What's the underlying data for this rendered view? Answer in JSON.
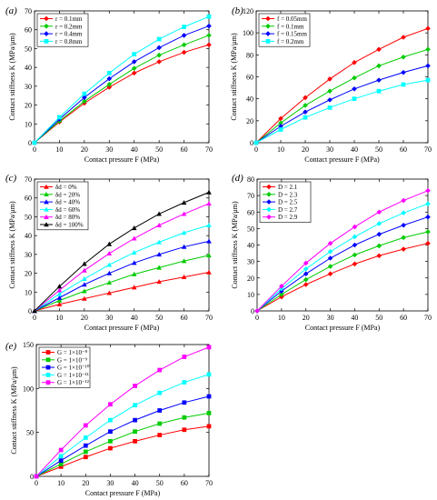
{
  "figure": {
    "chart_data": [
      {
        "panel": "(a)",
        "type": "line",
        "xlabel": "Contact pressure F (MPa)",
        "ylabel": "Contact stiffness K (MPa/μm)",
        "xlim": [
          0,
          70
        ],
        "ylim": [
          0,
          70
        ],
        "xticks": [
          0,
          10,
          20,
          30,
          40,
          50,
          60,
          70
        ],
        "yticks": [
          0,
          10,
          20,
          30,
          40,
          50,
          60,
          70
        ],
        "legend_position": "top-left",
        "x": [
          0,
          10,
          20,
          30,
          40,
          50,
          60,
          70
        ],
        "series": [
          {
            "name": "r = 0.1mm",
            "color": "#ff0000",
            "marker": "diamond",
            "values": [
              0,
              11,
              21,
              29.5,
              37,
              43,
              48,
              52
            ]
          },
          {
            "name": "r = 0.2mm",
            "color": "#00cc00",
            "marker": "diamond",
            "values": [
              0,
              11.5,
              22,
              31,
              39.5,
              46.5,
              52,
              57
            ]
          },
          {
            "name": "r = 0.4mm",
            "color": "#0000ff",
            "marker": "diamond",
            "values": [
              0,
              12.5,
              24,
              34,
              43,
              50.5,
              57,
              62
            ]
          },
          {
            "name": "r = 0.8mm",
            "color": "#00ffff",
            "marker": "square",
            "values": [
              0,
              13.5,
              26,
              37,
              47,
              55,
              61.5,
              67
            ]
          }
        ]
      },
      {
        "panel": "(b)",
        "type": "line",
        "xlabel": "Contact pressure F (MPa)",
        "ylabel": "Contact stiffness K (MPa/μm)",
        "xlim": [
          0,
          70
        ],
        "ylim": [
          0,
          120
        ],
        "xticks": [
          0,
          10,
          20,
          30,
          40,
          50,
          60,
          70
        ],
        "yticks": [
          0,
          20,
          40,
          60,
          80,
          100,
          120
        ],
        "legend_position": "top-left",
        "x": [
          0,
          10,
          20,
          30,
          40,
          50,
          60,
          70
        ],
        "series": [
          {
            "name": "f = 0.05mm",
            "color": "#ff0000",
            "marker": "diamond",
            "values": [
              0,
              22,
              41,
              58,
              73,
              85,
              96,
              104
            ]
          },
          {
            "name": "f = 0.1mm",
            "color": "#00cc00",
            "marker": "diamond",
            "values": [
              0,
              18,
              34,
              47,
              59,
              70,
              78,
              85
            ]
          },
          {
            "name": "f = 0.15mm",
            "color": "#0000ff",
            "marker": "diamond",
            "values": [
              0,
              15,
              28,
              39,
              49,
              57,
              64,
              70
            ]
          },
          {
            "name": "f = 0.2mm",
            "color": "#00ffff",
            "marker": "square",
            "values": [
              0,
              12,
              23,
              32,
              40,
              47,
              53,
              57
            ]
          }
        ]
      },
      {
        "panel": "(c)",
        "type": "line",
        "xlabel": "Contact pressure F (MPa)",
        "ylabel": "Contact stiffness K (MPa/μm)",
        "xlim": [
          0,
          70
        ],
        "ylim": [
          0,
          70
        ],
        "xticks": [
          0,
          10,
          20,
          30,
          40,
          50,
          60,
          70
        ],
        "yticks": [
          0,
          10,
          20,
          30,
          40,
          50,
          60,
          70
        ],
        "legend_position": "top-left",
        "x": [
          0,
          10,
          20,
          30,
          40,
          50,
          60,
          70
        ],
        "series": [
          {
            "name": "δd = 0%",
            "color": "#ff0000",
            "marker": "triangle",
            "values": [
              0,
              3.5,
              6.5,
              9.5,
              12.5,
              15.5,
              18,
              20.5
            ]
          },
          {
            "name": "δd = 20%",
            "color": "#00cc00",
            "marker": "triangle",
            "values": [
              0,
              5.5,
              10.5,
              15,
              19.5,
              23,
              26.5,
              29.5
            ]
          },
          {
            "name": "δd = 40%",
            "color": "#0000ff",
            "marker": "triangle",
            "values": [
              0,
              7,
              14,
              20,
              25.5,
              30,
              34,
              37
            ]
          },
          {
            "name": "δd = 60%",
            "color": "#00ffff",
            "marker": "triangle",
            "values": [
              0,
              9,
              17,
              24.5,
              31,
              36.5,
              41.5,
              45.5
            ]
          },
          {
            "name": "δd = 80%",
            "color": "#ff00ff",
            "marker": "triangle",
            "values": [
              0,
              11,
              21.5,
              30.5,
              38.5,
              45.5,
              51.5,
              57
            ]
          },
          {
            "name": "δd = 100%",
            "color": "#000000",
            "marker": "triangle",
            "values": [
              0,
              13,
              25,
              35.5,
              44,
              51.5,
              57.5,
              63
            ]
          }
        ]
      },
      {
        "panel": "(d)",
        "type": "line",
        "xlabel": "Contact pressure F (MPa)",
        "ylabel": "Contact stiffness K (MPa/μm)",
        "xlim": [
          0,
          70
        ],
        "ylim": [
          0,
          80
        ],
        "xticks": [
          0,
          10,
          20,
          30,
          40,
          50,
          60,
          70
        ],
        "yticks": [
          0,
          10,
          20,
          30,
          40,
          50,
          60,
          70,
          80
        ],
        "legend_position": "top-left",
        "x": [
          0,
          10,
          20,
          30,
          40,
          50,
          60,
          70
        ],
        "series": [
          {
            "name": "D = 2.1",
            "color": "#ff0000",
            "marker": "diamond",
            "values": [
              0,
              8.5,
              16,
              22.5,
              28.5,
              33.5,
              37.5,
              41
            ]
          },
          {
            "name": "D = 2.3",
            "color": "#00cc00",
            "marker": "diamond",
            "values": [
              0,
              10,
              19,
              27,
              34,
              39.5,
              44.5,
              48
            ]
          },
          {
            "name": "D = 2.5",
            "color": "#0000ff",
            "marker": "diamond",
            "values": [
              0,
              12,
              22.5,
              32,
              40,
              46.5,
              52,
              57
            ]
          },
          {
            "name": "D = 2.7",
            "color": "#00ffff",
            "marker": "diamond",
            "values": [
              0,
              13.5,
              25.5,
              36,
              45,
              53,
              59.5,
              65
            ]
          },
          {
            "name": "D = 2.9",
            "color": "#ff00ff",
            "marker": "diamond",
            "values": [
              0,
              15,
              29,
              41,
              51,
              60,
              67,
              73
            ]
          }
        ]
      },
      {
        "panel": "(e)",
        "type": "line",
        "xlabel": "Contact pressure F (MPa)",
        "ylabel": "Contact stiffness K (MPa/μm)",
        "xlim": [
          0,
          70
        ],
        "ylim": [
          0,
          150
        ],
        "xticks": [
          0,
          10,
          20,
          30,
          40,
          50,
          60,
          70
        ],
        "yticks": [
          0,
          50,
          100,
          150
        ],
        "legend_position": "top-left",
        "x": [
          0,
          10,
          20,
          30,
          40,
          50,
          60,
          70
        ],
        "series": [
          {
            "name": "G = 1×10⁻⁸",
            "color": "#ff0000",
            "marker": "square",
            "values": [
              0,
              11,
              22,
              32,
              40,
              47,
              53,
              57
            ]
          },
          {
            "name": "G = 1×10⁻⁹",
            "color": "#00cc00",
            "marker": "square",
            "values": [
              0,
              14,
              28,
              40,
              51,
              60,
              67,
              72
            ]
          },
          {
            "name": "G = 1×10⁻¹⁰",
            "color": "#0000ff",
            "marker": "square",
            "values": [
              0,
              18,
              35,
              51,
              64,
              75,
              84,
              91
            ]
          },
          {
            "name": "G = 1×10⁻¹¹",
            "color": "#00ffff",
            "marker": "square",
            "values": [
              0,
              23,
              44,
              64,
              81,
              95,
              107,
              116
            ]
          },
          {
            "name": "G = 1×10⁻¹²",
            "color": "#ff00ff",
            "marker": "square",
            "values": [
              0,
              30,
              58,
              82,
              103,
              121,
              136,
              147
            ]
          }
        ]
      }
    ]
  }
}
